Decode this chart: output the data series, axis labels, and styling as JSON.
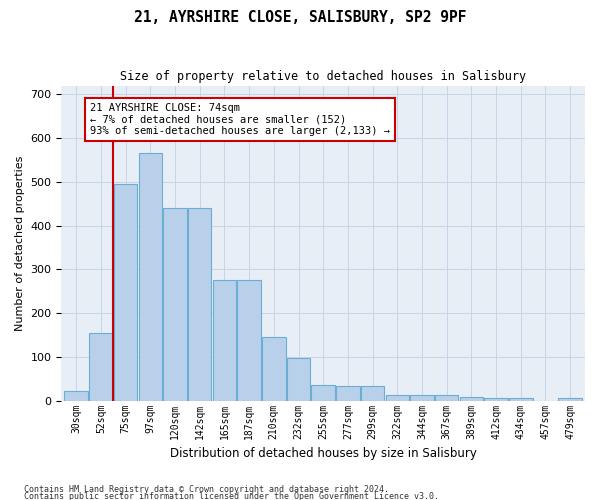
{
  "title": "21, AYRSHIRE CLOSE, SALISBURY, SP2 9PF",
  "subtitle": "Size of property relative to detached houses in Salisbury",
  "xlabel": "Distribution of detached houses by size in Salisbury",
  "ylabel": "Number of detached properties",
  "bar_values": [
    22,
    155,
    495,
    565,
    440,
    440,
    275,
    275,
    145,
    97,
    35,
    33,
    33,
    13,
    13,
    12,
    8,
    5,
    5,
    0,
    5
  ],
  "categories": [
    "30sqm",
    "52sqm",
    "75sqm",
    "97sqm",
    "120sqm",
    "142sqm",
    "165sqm",
    "187sqm",
    "210sqm",
    "232sqm",
    "255sqm",
    "277sqm",
    "299sqm",
    "322sqm",
    "344sqm",
    "367sqm",
    "389sqm",
    "412sqm",
    "434sqm",
    "457sqm",
    "479sqm"
  ],
  "bar_color": "#b8d0ea",
  "bar_edge_color": "#6aaed6",
  "annotation_text": "21 AYRSHIRE CLOSE: 74sqm\n← 7% of detached houses are smaller (152)\n93% of semi-detached houses are larger (2,133) →",
  "annotation_box_color": "#ffffff",
  "annotation_border_color": "#cc0000",
  "vline_color": "#cc0000",
  "grid_color": "#c8d4e8",
  "background_color": "#e8eef6",
  "footer_line1": "Contains HM Land Registry data © Crown copyright and database right 2024.",
  "footer_line2": "Contains public sector information licensed under the Open Government Licence v3.0.",
  "ylim": [
    0,
    720
  ],
  "yticks": [
    0,
    100,
    200,
    300,
    400,
    500,
    600,
    700
  ],
  "vline_pos": 1.5
}
